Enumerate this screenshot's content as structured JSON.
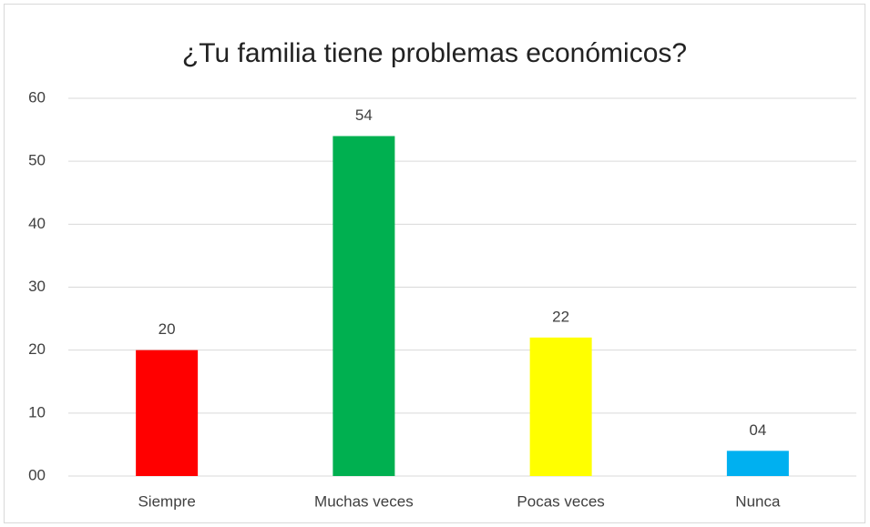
{
  "chart_data": {
    "type": "bar",
    "title": "¿Tu familia tiene problemas económicos?",
    "categories": [
      "Siempre",
      "Muchas veces",
      "Pocas veces",
      "Nunca"
    ],
    "values": [
      20,
      54,
      22,
      4
    ],
    "value_labels": [
      "20",
      "54",
      "22",
      "04"
    ],
    "colors": [
      "#ff0000",
      "#00b050",
      "#ffff00",
      "#00b0f0"
    ],
    "ylim": [
      0,
      60
    ],
    "yticks": [
      {
        "value": 0,
        "label": "00"
      },
      10,
      20,
      30,
      40,
      50,
      60
    ],
    "grid": true
  }
}
